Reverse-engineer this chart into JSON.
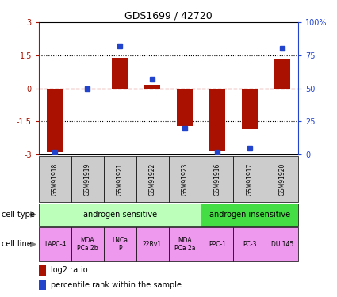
{
  "title": "GDS1699 / 42720",
  "samples": [
    "GSM91918",
    "GSM91919",
    "GSM91921",
    "GSM91922",
    "GSM91923",
    "GSM91916",
    "GSM91917",
    "GSM91920"
  ],
  "log2_ratio": [
    -2.9,
    0.0,
    1.4,
    0.15,
    -1.7,
    -2.85,
    -1.85,
    1.3
  ],
  "percentile_rank": [
    2,
    50,
    82,
    57,
    20,
    2,
    5,
    80
  ],
  "ylim_left": [
    -3,
    3
  ],
  "yticks_left": [
    -3,
    -1.5,
    0,
    1.5,
    3
  ],
  "ylim_right": [
    0,
    100
  ],
  "yticks_right": [
    0,
    25,
    50,
    75,
    100
  ],
  "ytick_labels_left": [
    "-3",
    "-1.5",
    "0",
    "1.5",
    "3"
  ],
  "ytick_labels_right": [
    "0",
    "25",
    "50",
    "75",
    "100%"
  ],
  "cell_types": [
    {
      "label": "androgen sensitive",
      "start": 0,
      "end": 5,
      "color": "#bbffbb"
    },
    {
      "label": "androgen insensitive",
      "start": 5,
      "end": 8,
      "color": "#44dd44"
    }
  ],
  "cell_lines": [
    {
      "label": "LAPC-4",
      "start": 0,
      "end": 1,
      "color": "#ee99ee"
    },
    {
      "label": "MDA\nPCa 2b",
      "start": 1,
      "end": 2,
      "color": "#ee99ee"
    },
    {
      "label": "LNCa\nP",
      "start": 2,
      "end": 3,
      "color": "#ee99ee"
    },
    {
      "label": "22Rv1",
      "start": 3,
      "end": 4,
      "color": "#ee99ee"
    },
    {
      "label": "MDA\nPCa 2a",
      "start": 4,
      "end": 5,
      "color": "#ee99ee"
    },
    {
      "label": "PPC-1",
      "start": 5,
      "end": 6,
      "color": "#ee99ee"
    },
    {
      "label": "PC-3",
      "start": 6,
      "end": 7,
      "color": "#ee99ee"
    },
    {
      "label": "DU 145",
      "start": 7,
      "end": 8,
      "color": "#ee99ee"
    }
  ],
  "bar_color": "#aa1100",
  "dot_color": "#2244cc",
  "ref_line_color": "#cc2222",
  "dotted_line_color": "#000000",
  "sample_box_color": "#cccccc",
  "legend_red": "#aa1100",
  "legend_blue": "#2244cc"
}
